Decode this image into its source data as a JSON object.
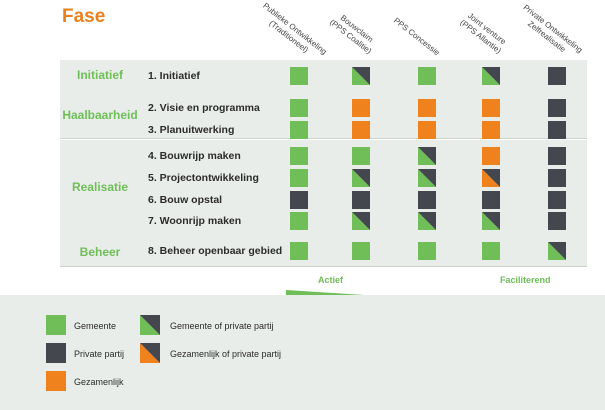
{
  "title": "Fase",
  "colors": {
    "green": "#6fbe58",
    "dark": "#44484e",
    "orange": "#f0821e",
    "accent": "#e8821e",
    "phase_text": "#6fbe58"
  },
  "columns": [
    [
      "Publieke Ontwikkeling",
      "(Traditioneel)"
    ],
    [
      "Bouwclaim",
      "(PPS Coalitie)"
    ],
    [
      "PPS Concessie"
    ],
    [
      "Joint venture",
      "(PPS Allantie)"
    ],
    [
      "Private Ontwikkeling",
      "Zelfrealisatie"
    ]
  ],
  "phases": [
    {
      "name": "Initiatief",
      "steps": [
        "1. Initiatief"
      ]
    },
    {
      "name": "Haalbaarheid",
      "steps": [
        "2. Visie en programma",
        "3. Planuitwerking"
      ]
    },
    {
      "name": "Realisatie",
      "steps": [
        "4. Bouwrijp maken",
        "5. Projectontwikkeling",
        "6. Bouw opstal",
        "7. Woonrijp maken"
      ]
    },
    {
      "name": "Beheer",
      "steps": [
        "8. Beheer openbaar gebied"
      ]
    }
  ],
  "matrix": [
    [
      "G",
      "GD",
      "G",
      "GD",
      "D"
    ],
    [
      "G",
      "O",
      "O",
      "O",
      "D"
    ],
    [
      "G",
      "O",
      "O",
      "O",
      "D"
    ],
    [
      "G",
      "G",
      "GD",
      "O",
      "D"
    ],
    [
      "G",
      "GD",
      "GD",
      "OD",
      "D"
    ],
    [
      "D",
      "D",
      "D",
      "D",
      "D"
    ],
    [
      "G",
      "GD",
      "GD",
      "GD",
      "D"
    ],
    [
      "G",
      "G",
      "G",
      "G",
      "GD"
    ]
  ],
  "scale": {
    "left": "Actief",
    "right": "Faciliterend"
  },
  "legend": [
    {
      "type": "G",
      "label": "Gemeente"
    },
    {
      "type": "D",
      "label": "Private partij"
    },
    {
      "type": "O",
      "label": "Gezamenlijk"
    },
    {
      "type": "GD",
      "label": "Gemeente of private partij"
    },
    {
      "type": "OD",
      "label": "Gezamenlijk of private partij"
    }
  ]
}
